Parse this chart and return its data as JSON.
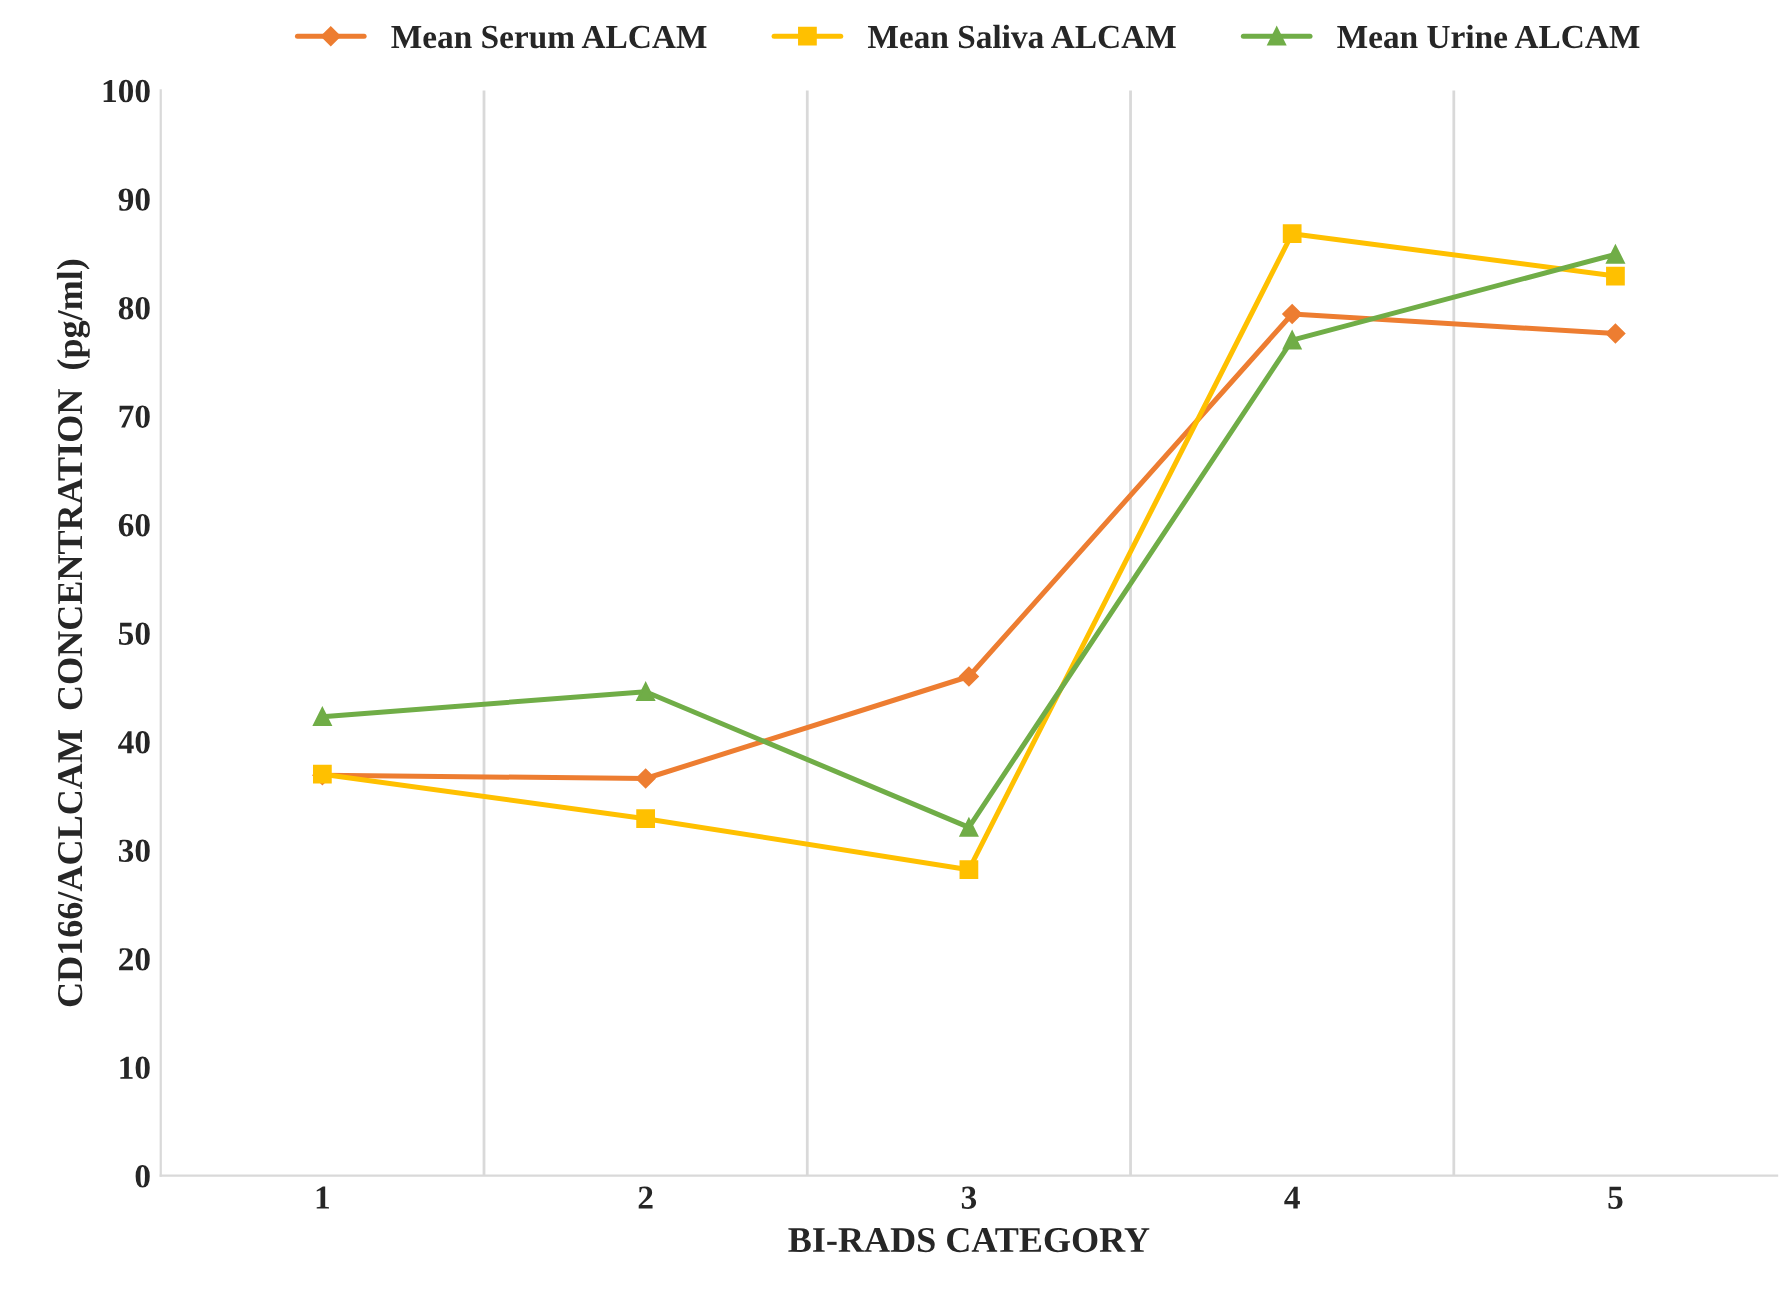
{
  "chart_data": {
    "type": "line",
    "xlabel": "BI-RADS CATEGORY",
    "ylabel": "CD166/ACLCAM  CONCENTRATION  (pg/ml)",
    "categories": [
      "1",
      "2",
      "3",
      "4",
      "5"
    ],
    "series": [
      {
        "name": "Mean Serum ALCAM",
        "color": "#ed7d31",
        "marker": "diamond",
        "values": [
          36.9,
          36.6,
          46.0,
          79.4,
          77.6
        ]
      },
      {
        "name": "Mean Saliva ALCAM",
        "color": "#ffc000",
        "marker": "square",
        "values": [
          37.0,
          32.9,
          28.2,
          86.8,
          82.9
        ]
      },
      {
        "name": "Mean Urine ALCAM",
        "color": "#70ad47",
        "marker": "triangle",
        "values": [
          42.3,
          44.6,
          32.1,
          77.0,
          84.9
        ]
      }
    ],
    "ylim": [
      0,
      100
    ],
    "yticks": [
      0,
      10,
      20,
      30,
      40,
      50,
      60,
      70,
      80,
      90,
      100
    ],
    "grid": "x",
    "legend": "top",
    "line_style": "solid"
  }
}
